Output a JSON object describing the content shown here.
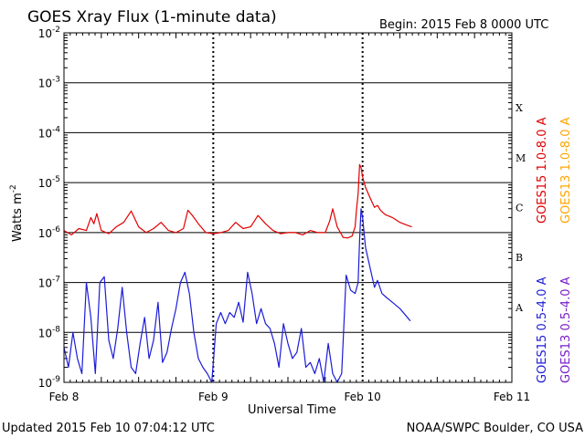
{
  "chart_data": {
    "type": "line",
    "title": "GOES Xray Flux (1-minute data)",
    "begin_label": "Begin:  2015 Feb 8 0000 UTC",
    "xlabel": "Universal Time",
    "ylabel": "Watts m",
    "ylabel_sup": "-2",
    "y_scale": "log",
    "ylim": [
      1e-09,
      0.01
    ],
    "y_ticks": [
      {
        "base": "10",
        "exp": "-2",
        "value": 0.01
      },
      {
        "base": "10",
        "exp": "-3",
        "value": 0.001
      },
      {
        "base": "10",
        "exp": "-4",
        "value": 0.0001
      },
      {
        "base": "10",
        "exp": "-5",
        "value": 1e-05
      },
      {
        "base": "10",
        "exp": "-6",
        "value": 1e-06
      },
      {
        "base": "10",
        "exp": "-7",
        "value": 1e-07
      },
      {
        "base": "10",
        "exp": "-8",
        "value": 1e-08
      },
      {
        "base": "10",
        "exp": "-9",
        "value": 1e-09
      }
    ],
    "x_unit": "days since Feb 8 0000 UTC",
    "xlim": [
      0,
      3
    ],
    "x_ticks": [
      {
        "label": "Feb 8",
        "value": 0
      },
      {
        "label": "Feb 9",
        "value": 1
      },
      {
        "label": "Feb 10",
        "value": 2
      },
      {
        "label": "Feb 11",
        "value": 3
      }
    ],
    "flare_classes": [
      {
        "label": "X",
        "low": 0.0001
      },
      {
        "label": "M",
        "low": 1e-05
      },
      {
        "label": "C",
        "low": 1e-06
      },
      {
        "label": "B",
        "low": 1e-07
      },
      {
        "label": "A",
        "low": 1e-08
      }
    ],
    "legend": [
      {
        "name": "GOES15 1.0-8.0 A",
        "color": "#e00000"
      },
      {
        "name": "GOES13 1.0-8.0 A",
        "color": "#ffa500"
      },
      {
        "name": "GOES15 0.5-4.0 A",
        "color": "#1c1cd8"
      },
      {
        "name": "GOES13 0.5-4.0 A",
        "color": "#7a1cc8"
      }
    ],
    "series": [
      {
        "name": "GOES15 1.0-8.0 A",
        "color": "#e00000",
        "x": [
          0,
          0.05,
          0.1,
          0.15,
          0.18,
          0.2,
          0.22,
          0.25,
          0.3,
          0.35,
          0.4,
          0.45,
          0.5,
          0.55,
          0.6,
          0.65,
          0.7,
          0.75,
          0.8,
          0.83,
          0.86,
          0.9,
          0.95,
          1.0,
          1.05,
          1.1,
          1.15,
          1.2,
          1.25,
          1.3,
          1.35,
          1.4,
          1.45,
          1.5,
          1.55,
          1.6,
          1.65,
          1.7,
          1.75,
          1.78,
          1.8,
          1.83,
          1.87,
          1.9,
          1.93,
          1.95,
          1.96,
          1.97,
          1.98,
          1.99,
          2.0,
          2.02,
          2.05,
          2.08,
          2.1,
          2.12,
          2.15,
          2.2,
          2.25,
          2.3,
          2.33
        ],
        "values": [
          1.1e-06,
          9e-07,
          1.2e-06,
          1.1e-06,
          2e-06,
          1.5e-06,
          2.4e-06,
          1.1e-06,
          9.5e-07,
          1.3e-06,
          1.6e-06,
          2.7e-06,
          1.3e-06,
          1e-06,
          1.2e-06,
          1.6e-06,
          1.1e-06,
          1e-06,
          1.2e-06,
          2.8e-06,
          2.2e-06,
          1.5e-06,
          1e-06,
          9.5e-07,
          1e-06,
          1.1e-06,
          1.6e-06,
          1.2e-06,
          1.3e-06,
          2.2e-06,
          1.5e-06,
          1.1e-06,
          9.5e-07,
          1e-06,
          1e-06,
          9e-07,
          1.1e-06,
          1e-06,
          1e-06,
          1.7e-06,
          3e-06,
          1.3e-06,
          8e-07,
          7.8e-07,
          8.5e-07,
          1.3e-06,
          3e-06,
          6e-06,
          2.3e-05,
          2e-05,
          1.3e-05,
          8e-06,
          5e-06,
          3.2e-06,
          3.5e-06,
          2.8e-06,
          2.3e-06,
          2e-06,
          1.6e-06,
          1.4e-06,
          1.3e-06
        ]
      },
      {
        "name": "GOES15 0.5-4.0 A",
        "color": "#1c1cd8",
        "x": [
          0,
          0.03,
          0.06,
          0.09,
          0.12,
          0.15,
          0.18,
          0.21,
          0.24,
          0.27,
          0.3,
          0.33,
          0.36,
          0.39,
          0.42,
          0.45,
          0.48,
          0.51,
          0.54,
          0.57,
          0.6,
          0.63,
          0.66,
          0.69,
          0.72,
          0.75,
          0.78,
          0.81,
          0.84,
          0.87,
          0.9,
          0.93,
          0.96,
          0.99,
          1.02,
          1.05,
          1.08,
          1.11,
          1.14,
          1.17,
          1.2,
          1.23,
          1.26,
          1.29,
          1.32,
          1.35,
          1.38,
          1.41,
          1.44,
          1.47,
          1.5,
          1.53,
          1.56,
          1.59,
          1.62,
          1.65,
          1.68,
          1.71,
          1.74,
          1.77,
          1.8,
          1.83,
          1.86,
          1.89,
          1.92,
          1.95,
          1.97,
          1.98,
          1.99,
          2.0,
          2.02,
          2.05,
          2.08,
          2.1,
          2.13,
          2.16,
          2.2,
          2.25,
          2.3,
          2.32
        ],
        "values": [
          5e-09,
          2e-09,
          1e-08,
          3e-09,
          1.5e-09,
          1e-07,
          2e-08,
          1.5e-09,
          1e-07,
          1.3e-07,
          7e-09,
          3e-09,
          1.2e-08,
          8e-08,
          1e-08,
          2e-09,
          1.5e-09,
          6e-09,
          2e-08,
          3e-09,
          7e-09,
          4e-08,
          2.5e-09,
          4e-09,
          1.2e-08,
          3e-08,
          1e-07,
          1.6e-07,
          6e-08,
          1e-08,
          3e-09,
          2e-09,
          1.5e-09,
          1e-09,
          1.5e-08,
          2.5e-08,
          1.5e-08,
          2.5e-08,
          2e-08,
          4e-08,
          1.6e-08,
          1.6e-07,
          6e-08,
          1.5e-08,
          3e-08,
          1.5e-08,
          1.2e-08,
          6e-09,
          2e-09,
          1.5e-08,
          6e-09,
          3e-09,
          4e-09,
          1.2e-08,
          2e-09,
          2.5e-09,
          1.5e-09,
          3e-09,
          1e-09,
          6e-09,
          1.5e-09,
          1e-09,
          1.5e-09,
          1.4e-07,
          7e-08,
          6e-08,
          1e-07,
          7e-07,
          3e-06,
          2e-06,
          5e-07,
          2e-07,
          8e-08,
          1.1e-07,
          6e-08,
          5e-08,
          4e-08,
          3e-08,
          2e-08,
          1.7e-08
        ]
      }
    ],
    "footer_left": "Updated 2015 Feb 10 07:04:12 UTC",
    "footer_right": "NOAA/SWPC Boulder, CO USA"
  }
}
